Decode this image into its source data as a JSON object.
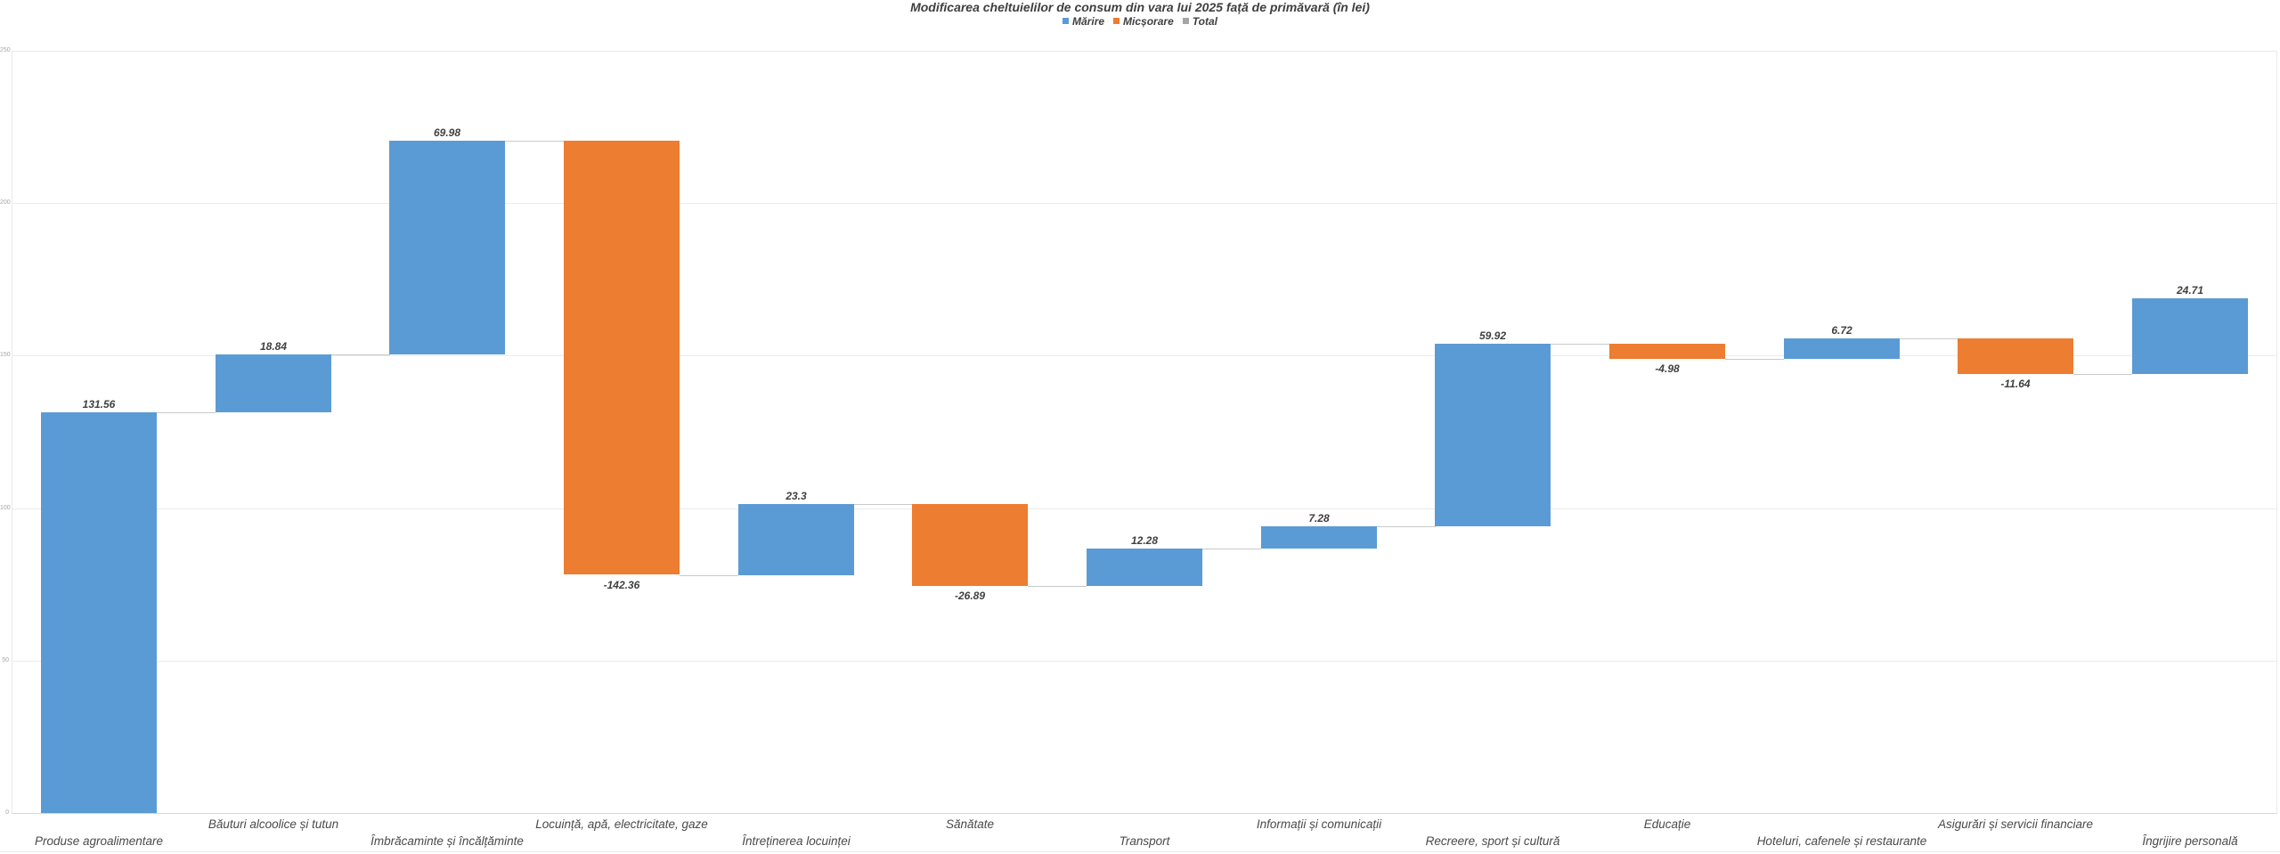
{
  "chart": {
    "title": "Modificarea cheltuielilor de consum din vara lui 2025 față de primăvară (în lei)"
  },
  "legend": {
    "items": [
      {
        "name": "marire",
        "label": "Mărire",
        "color": "#5B9BD5"
      },
      {
        "name": "micsorare",
        "label": "Micșorare",
        "color": "#ED7D31"
      },
      {
        "name": "total",
        "label": "Total",
        "color": "#A5A5A5"
      }
    ]
  },
  "chart_data": {
    "type": "bar",
    "subtype": "waterfall",
    "title": "Modificarea cheltuielilor de consum din vara lui 2025 față de primăvară (în lei)",
    "categories": [
      "Produse agroalimentare",
      "Băuturi alcoolice și tutun",
      "Îmbrăcaminte și încălțăminte",
      "Locuință, apă, electricitate, gaze",
      "Întreținerea locuinței",
      "Sănătate",
      "Transport",
      "Informații și comunicații",
      "Recreere, sport și cultură",
      "Educație",
      "Hoteluri, cafenele și restaurante",
      "Asigurări și servicii financiare",
      "Îngrijire personală"
    ],
    "values": [
      131.56,
      18.84,
      69.98,
      -142.36,
      23.3,
      -26.89,
      12.28,
      7.28,
      59.92,
      -4.98,
      6.72,
      -11.64,
      24.71
    ],
    "value_labels": [
      "131.56",
      "18.84",
      "69.98",
      "-142.36",
      "23.3",
      "-26.89",
      "12.28",
      "7.28",
      "59.92",
      "-4.98",
      "6.72",
      "-11.64",
      "24.71"
    ],
    "running_totals": [
      131.56,
      150.4,
      220.38,
      78.02,
      101.32,
      74.43,
      86.71,
      93.99,
      153.91,
      148.93,
      155.65,
      144.01,
      168.72
    ],
    "xlabel": "",
    "ylabel": "",
    "ylim": [
      0,
      250
    ],
    "yticks": [
      0,
      50,
      100,
      150,
      200,
      250
    ],
    "ytick_labels": [
      "0",
      "50",
      "100",
      "150",
      "200",
      "250"
    ],
    "grid": true,
    "legend_position": "top-center",
    "increase_color": "#5B9BD5",
    "decrease_color": "#ED7D31",
    "total_color": "#A5A5A5",
    "category_label_rows": [
      1,
      0,
      1,
      0,
      1,
      0,
      1,
      0,
      1,
      0,
      1,
      0,
      1
    ]
  }
}
